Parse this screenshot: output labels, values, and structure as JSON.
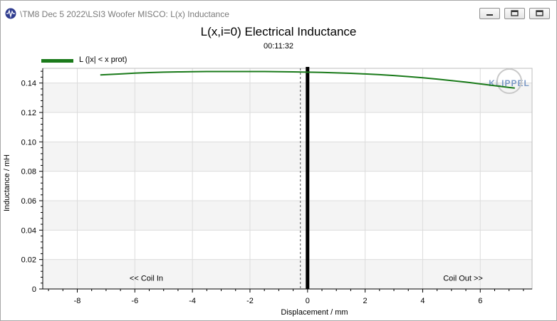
{
  "window": {
    "title": "\\TM8 Dec 5 2022\\LSI3 Woofer MISCO: L(x) Inductance",
    "app_icon": "waveform-icon",
    "buttons": [
      "minimize-icon",
      "restore-icon",
      "close-icon"
    ]
  },
  "chart_data": {
    "type": "line",
    "title": "L(x,i=0) Electrical Inductance",
    "subtitle": "00:11:32",
    "xlabel": "Displacement / mm",
    "ylabel": "Inductance / mH",
    "xlim": [
      -9.2,
      7.8
    ],
    "ylim": [
      0,
      0.15
    ],
    "x_ticks": [
      -8,
      -6,
      -4,
      -2,
      0,
      2,
      4,
      6
    ],
    "y_ticks": [
      0,
      0.02,
      0.04,
      0.06,
      0.08,
      0.1,
      0.12,
      0.14
    ],
    "x_tick_labels": [
      "-8",
      "-6",
      "-4",
      "-2",
      "0",
      "2",
      "4",
      "6"
    ],
    "y_tick_labels": [
      "0",
      "0.02",
      "0.04",
      "0.06",
      "0.08",
      "0.10",
      "0.12",
      "0.14"
    ],
    "grid": true,
    "legend_position": "top-left",
    "series": [
      {
        "name": "L (|x| < x prot)",
        "color": "#1a7a1a",
        "x": [
          -7.2,
          -6.5,
          -6.0,
          -5.5,
          -5.0,
          -4.5,
          -4.0,
          -3.5,
          -3.0,
          -2.5,
          -2.0,
          -1.5,
          -1.0,
          -0.5,
          0.0,
          0.5,
          1.0,
          1.5,
          2.0,
          2.5,
          3.0,
          3.5,
          4.0,
          4.5,
          5.0,
          5.5,
          6.0,
          6.5,
          7.0,
          7.2
        ],
        "y": [
          0.1455,
          0.1462,
          0.1467,
          0.1471,
          0.1474,
          0.1476,
          0.1477,
          0.1478,
          0.1478,
          0.1478,
          0.1478,
          0.1478,
          0.1477,
          0.1476,
          0.1474,
          0.1472,
          0.1469,
          0.1466,
          0.1462,
          0.1457,
          0.1451,
          0.1444,
          0.1436,
          0.1427,
          0.1417,
          0.1406,
          0.1394,
          0.1382,
          0.137,
          0.1366
        ]
      }
    ],
    "vertical_markers": [
      {
        "x": 0,
        "style": "thick-solid",
        "color": "#000000"
      },
      {
        "x": -0.15,
        "style": "dashed",
        "color": "#555555"
      }
    ],
    "annotations": [
      {
        "text": "<< Coil In",
        "x": -5.6,
        "y": 0.0055
      },
      {
        "text": "Coil Out >>",
        "x": 5.4,
        "y": 0.0055
      }
    ],
    "watermark": "KLIPPEL"
  }
}
